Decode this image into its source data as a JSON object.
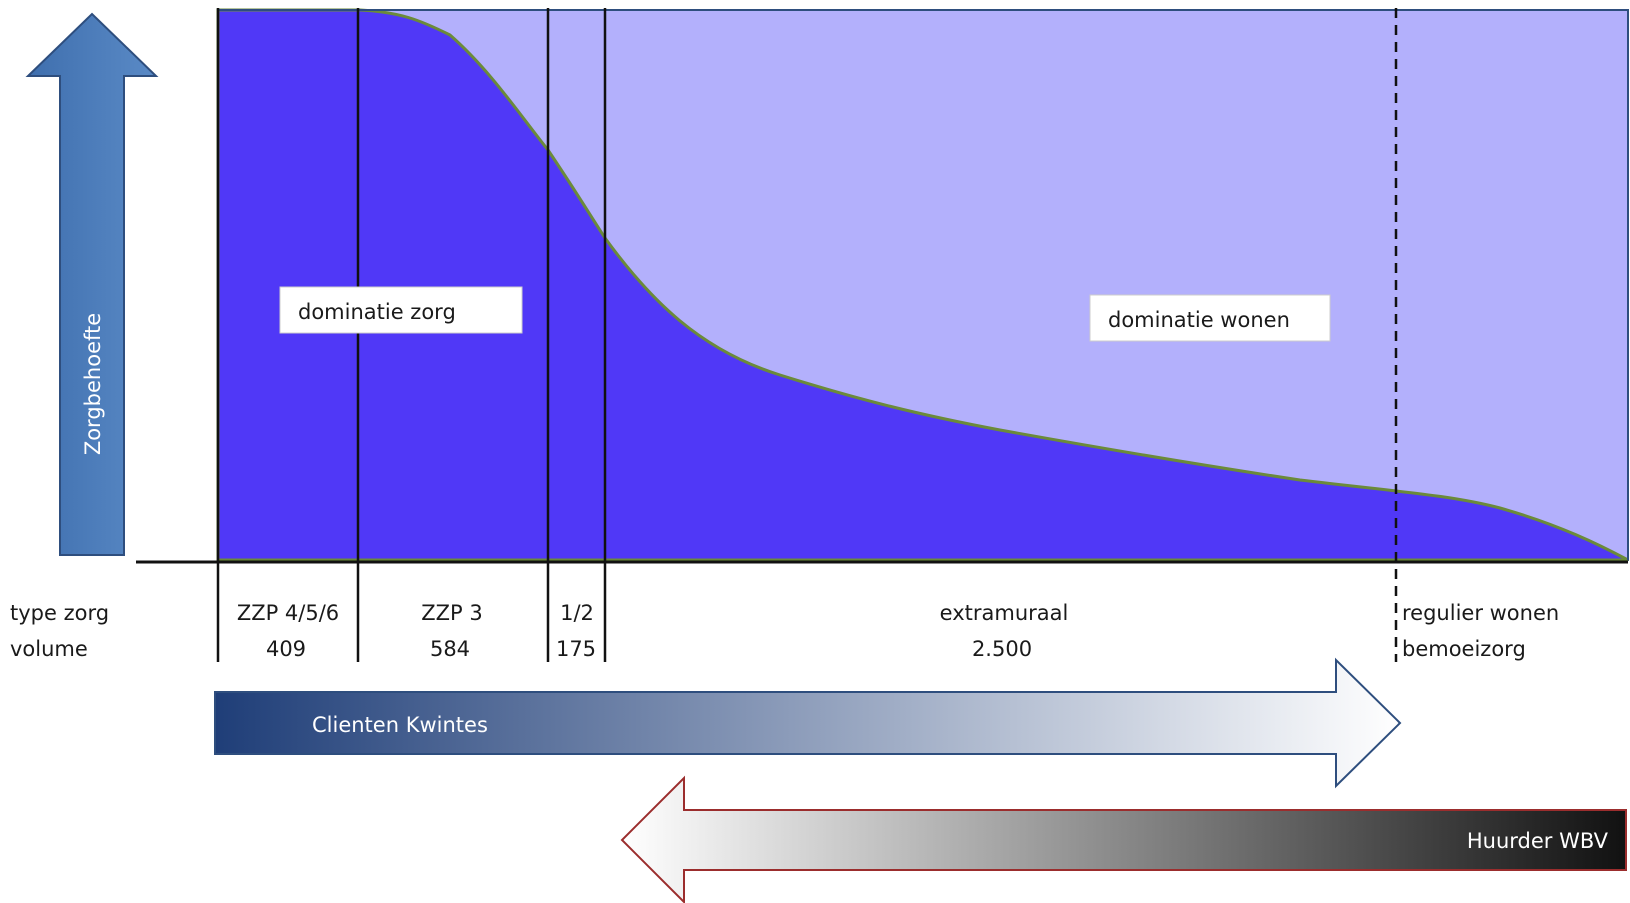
{
  "colors": {
    "care_area": "#5038f7",
    "housing_area": "#b3b0fc",
    "curve_stroke": "#6b8a3a",
    "frame_blue": "#2e4e7e",
    "axis_arrow": "#4a7ab8",
    "clients_arrow_dark": "#1f3e78",
    "clients_arrow_light": "#ffffff",
    "tenant_arrow_dark": "#111111",
    "tenant_arrow_border": "#9b2d2d"
  },
  "axis": {
    "label": "Zorgbehoefte"
  },
  "regions": {
    "care_label": "dominatie zorg",
    "housing_label": "dominatie wonen"
  },
  "rows": {
    "type_label": "type zorg",
    "volume_label": "volume"
  },
  "segments": [
    {
      "type": "ZZP 4/5/6",
      "volume": "409"
    },
    {
      "type": "ZZP 3",
      "volume": "584"
    },
    {
      "type": "1/2",
      "volume": "175"
    },
    {
      "type": "extramuraal",
      "volume": "2.500"
    },
    {
      "type": "regulier wonen",
      "volume": "bemoeizorg"
    }
  ],
  "arrows": {
    "clients": "Clienten  Kwintes",
    "tenants": "Huurder  WBV"
  }
}
